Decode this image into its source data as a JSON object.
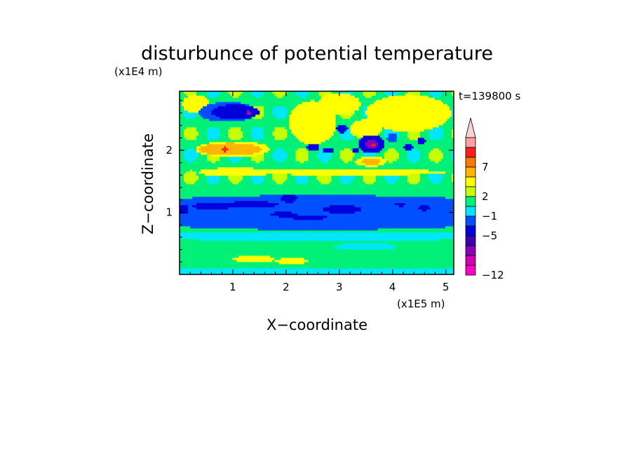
{
  "chart_data": {
    "type": "heatmap",
    "title": "disturbunce of potential temperature",
    "xlabel": "X−coordinate",
    "ylabel": "Z−coordinate",
    "x_unit": "(x1E5 m)",
    "y_unit": "(x1E4 m)",
    "time_label": "t=139800 s",
    "xlim": [
      0,
      5.15
    ],
    "ylim": [
      0,
      2.95
    ],
    "x_ticks": [
      1,
      2,
      3,
      4,
      5
    ],
    "x_tick_labels": [
      "1",
      "2",
      "3",
      "4",
      "5"
    ],
    "y_ticks": [
      1,
      2
    ],
    "y_tick_labels": [
      "1",
      "2"
    ],
    "colorbar": {
      "levels": [
        -12,
        -10,
        -8,
        -6,
        -5,
        -3,
        -1,
        1,
        2,
        3,
        5,
        7,
        9,
        11
      ],
      "tick_labels": [
        "−12",
        "−5",
        "−1",
        "2",
        "7"
      ],
      "tick_values": [
        -12,
        -5,
        -1,
        2,
        7
      ],
      "extend": "max",
      "colors": [
        "#ff00c8",
        "#d000b4",
        "#8c00b4",
        "#3c00b4",
        "#0000dc",
        "#0050ff",
        "#00e6ff",
        "#00f078",
        "#c8ff00",
        "#ffff00",
        "#ffb400",
        "#ff7800",
        "#ff1e1e",
        "#ffa0a0",
        "#ffd2d2"
      ]
    },
    "background_value": 1.5,
    "features": [
      {
        "x": 0.9,
        "z": 2.62,
        "rx": 0.55,
        "rz": 0.16,
        "v": -1.5
      },
      {
        "x": 1.05,
        "z": 2.62,
        "rx": 0.45,
        "rz": 0.12,
        "v": -4
      },
      {
        "x": 1.3,
        "z": 2.6,
        "rx": 0.05,
        "rz": 0.03,
        "v": -9
      },
      {
        "x": 1.0,
        "z": 2.02,
        "rx": 0.7,
        "rz": 0.13,
        "v": 4
      },
      {
        "x": 0.95,
        "z": 2.02,
        "rx": 0.6,
        "rz": 0.1,
        "v": 6
      },
      {
        "x": 0.85,
        "z": 2.02,
        "rx": 0.06,
        "rz": 0.04,
        "v": 10
      },
      {
        "x": 1.05,
        "z": 1.65,
        "rx": 0.7,
        "rz": 0.07,
        "v": 3.4
      },
      {
        "x": 0.3,
        "z": 2.75,
        "rx": 0.25,
        "rz": 0.15,
        "v": 4
      },
      {
        "x": 2.5,
        "z": 2.45,
        "rx": 0.45,
        "rz": 0.35,
        "v": 4
      },
      {
        "x": 3.0,
        "z": 2.75,
        "rx": 0.4,
        "rz": 0.18,
        "v": 4
      },
      {
        "x": 4.3,
        "z": 2.6,
        "rx": 0.8,
        "rz": 0.3,
        "v": 3.5
      },
      {
        "x": 3.5,
        "z": 2.35,
        "rx": 0.3,
        "rz": 0.15,
        "v": 4
      },
      {
        "x": 3.6,
        "z": 2.1,
        "rx": 0.25,
        "rz": 0.15,
        "v": -4
      },
      {
        "x": 3.6,
        "z": 2.1,
        "rx": 0.13,
        "rz": 0.07,
        "v": -7
      },
      {
        "x": 3.63,
        "z": 2.09,
        "rx": 0.04,
        "rz": 0.02,
        "v": 10
      },
      {
        "x": 3.05,
        "z": 2.35,
        "rx": 0.1,
        "rz": 0.07,
        "v": -4
      },
      {
        "x": 2.5,
        "z": 2.05,
        "rx": 0.12,
        "rz": 0.06,
        "v": -4
      },
      {
        "x": 2.8,
        "z": 2.0,
        "rx": 0.1,
        "rz": 0.05,
        "v": -4
      },
      {
        "x": 3.3,
        "z": 2.0,
        "rx": 0.07,
        "rz": 0.05,
        "v": -4
      },
      {
        "x": 4.0,
        "z": 2.2,
        "rx": 0.1,
        "rz": 0.08,
        "v": -1.5
      },
      {
        "x": 4.3,
        "z": 2.05,
        "rx": 0.09,
        "rz": 0.05,
        "v": -4
      },
      {
        "x": 4.55,
        "z": 2.15,
        "rx": 0.07,
        "rz": 0.06,
        "v": -4
      },
      {
        "x": 3.6,
        "z": 1.82,
        "rx": 0.3,
        "rz": 0.08,
        "v": 4
      },
      {
        "x": 3.6,
        "z": 1.82,
        "rx": 0.18,
        "rz": 0.05,
        "v": 6
      },
      {
        "x": 3.2,
        "z": 1.65,
        "rx": 1.8,
        "rz": 0.05,
        "v": 3.4
      },
      {
        "x": 2.6,
        "z": 1.0,
        "rx": 4.5,
        "rz": 0.28,
        "v": -1.5
      },
      {
        "x": 0.6,
        "z": 1.1,
        "rx": 0.35,
        "rz": 0.06,
        "v": -4
      },
      {
        "x": 1.35,
        "z": 1.13,
        "rx": 0.5,
        "rz": 0.05,
        "v": -4
      },
      {
        "x": 1.95,
        "z": 0.97,
        "rx": 0.25,
        "rz": 0.04,
        "v": -4
      },
      {
        "x": 2.05,
        "z": 1.23,
        "rx": 0.15,
        "rz": 0.07,
        "v": -4
      },
      {
        "x": 3.05,
        "z": 1.05,
        "rx": 0.35,
        "rz": 0.07,
        "v": -4
      },
      {
        "x": 2.4,
        "z": 0.92,
        "rx": 0.4,
        "rz": 0.03,
        "v": -4
      },
      {
        "x": 4.6,
        "z": 1.07,
        "rx": 0.12,
        "rz": 0.04,
        "v": -4
      },
      {
        "x": 4.15,
        "z": 1.13,
        "rx": 0.1,
        "rz": 0.03,
        "v": -4
      },
      {
        "x": 0.05,
        "z": 1.05,
        "rx": 0.12,
        "rz": 0.08,
        "v": -4
      },
      {
        "x": 2.6,
        "z": 0.62,
        "rx": 4.5,
        "rz": 0.07,
        "v": 0.3
      },
      {
        "x": 3.5,
        "z": 0.45,
        "rx": 0.6,
        "rz": 0.06,
        "v": 0.3
      },
      {
        "x": 2.6,
        "z": 0.05,
        "rx": 4.5,
        "rz": 0.06,
        "v": 0.3
      },
      {
        "x": 1.4,
        "z": 0.25,
        "rx": 0.4,
        "rz": 0.06,
        "v": 3.4
      },
      {
        "x": 2.1,
        "z": 0.22,
        "rx": 0.3,
        "rz": 0.05,
        "v": 3.4
      }
    ]
  }
}
